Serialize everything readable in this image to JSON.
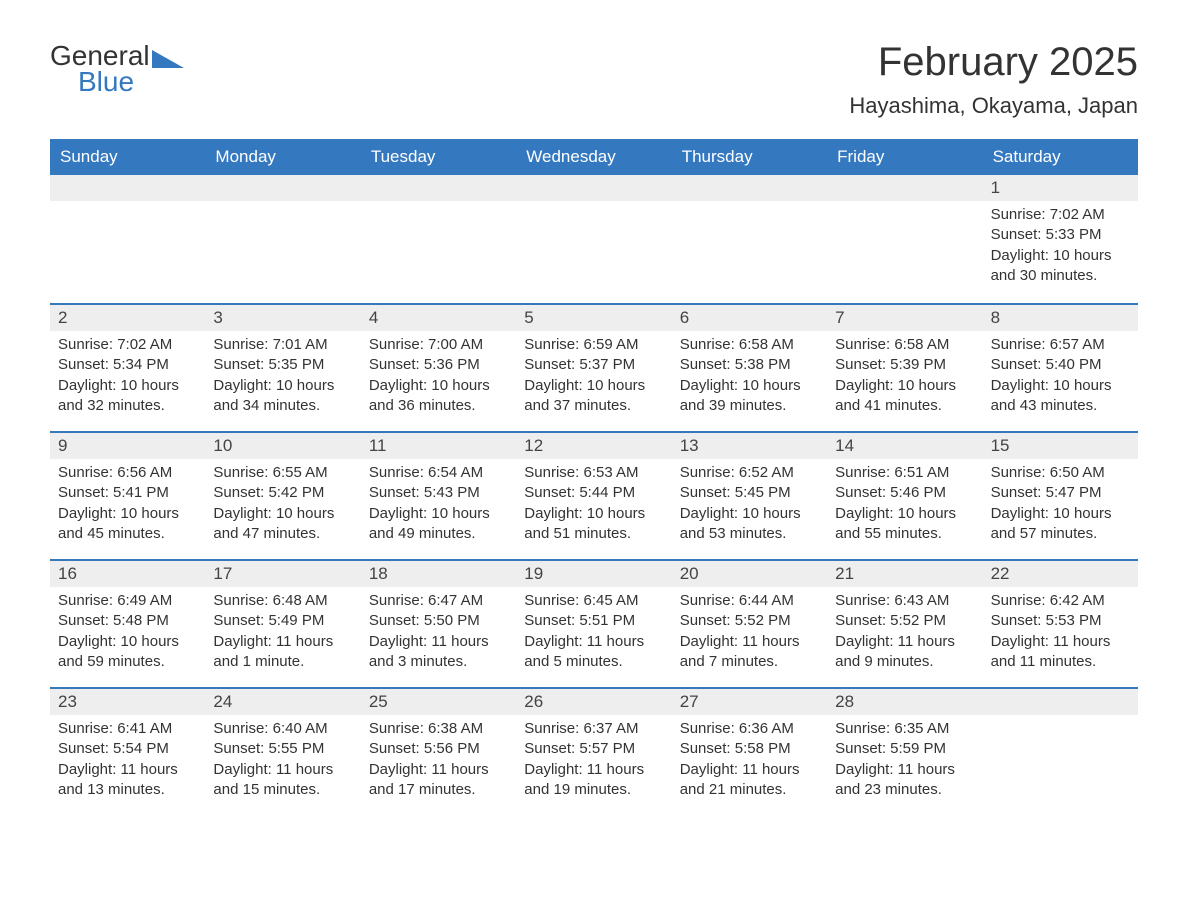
{
  "logo": {
    "text1": "General",
    "text2": "Blue"
  },
  "title": "February 2025",
  "location": "Hayashima, Okayama, Japan",
  "colors": {
    "header_bg": "#3478c0",
    "header_text": "#ffffff",
    "row_separator": "#3478c0",
    "daynum_bg": "#eeeeee",
    "text": "#333333",
    "background": "#ffffff"
  },
  "layout": {
    "columns": 7,
    "weekday_fontsize": 17,
    "title_fontsize": 40,
    "location_fontsize": 22,
    "daynum_fontsize": 17,
    "content_fontsize": 15
  },
  "weekdays": [
    "Sunday",
    "Monday",
    "Tuesday",
    "Wednesday",
    "Thursday",
    "Friday",
    "Saturday"
  ],
  "weeks": [
    [
      null,
      null,
      null,
      null,
      null,
      null,
      {
        "n": "1",
        "sunrise": "7:02 AM",
        "sunset": "5:33 PM",
        "daylight": "10 hours and 30 minutes."
      }
    ],
    [
      {
        "n": "2",
        "sunrise": "7:02 AM",
        "sunset": "5:34 PM",
        "daylight": "10 hours and 32 minutes."
      },
      {
        "n": "3",
        "sunrise": "7:01 AM",
        "sunset": "5:35 PM",
        "daylight": "10 hours and 34 minutes."
      },
      {
        "n": "4",
        "sunrise": "7:00 AM",
        "sunset": "5:36 PM",
        "daylight": "10 hours and 36 minutes."
      },
      {
        "n": "5",
        "sunrise": "6:59 AM",
        "sunset": "5:37 PM",
        "daylight": "10 hours and 37 minutes."
      },
      {
        "n": "6",
        "sunrise": "6:58 AM",
        "sunset": "5:38 PM",
        "daylight": "10 hours and 39 minutes."
      },
      {
        "n": "7",
        "sunrise": "6:58 AM",
        "sunset": "5:39 PM",
        "daylight": "10 hours and 41 minutes."
      },
      {
        "n": "8",
        "sunrise": "6:57 AM",
        "sunset": "5:40 PM",
        "daylight": "10 hours and 43 minutes."
      }
    ],
    [
      {
        "n": "9",
        "sunrise": "6:56 AM",
        "sunset": "5:41 PM",
        "daylight": "10 hours and 45 minutes."
      },
      {
        "n": "10",
        "sunrise": "6:55 AM",
        "sunset": "5:42 PM",
        "daylight": "10 hours and 47 minutes."
      },
      {
        "n": "11",
        "sunrise": "6:54 AM",
        "sunset": "5:43 PM",
        "daylight": "10 hours and 49 minutes."
      },
      {
        "n": "12",
        "sunrise": "6:53 AM",
        "sunset": "5:44 PM",
        "daylight": "10 hours and 51 minutes."
      },
      {
        "n": "13",
        "sunrise": "6:52 AM",
        "sunset": "5:45 PM",
        "daylight": "10 hours and 53 minutes."
      },
      {
        "n": "14",
        "sunrise": "6:51 AM",
        "sunset": "5:46 PM",
        "daylight": "10 hours and 55 minutes."
      },
      {
        "n": "15",
        "sunrise": "6:50 AM",
        "sunset": "5:47 PM",
        "daylight": "10 hours and 57 minutes."
      }
    ],
    [
      {
        "n": "16",
        "sunrise": "6:49 AM",
        "sunset": "5:48 PM",
        "daylight": "10 hours and 59 minutes."
      },
      {
        "n": "17",
        "sunrise": "6:48 AM",
        "sunset": "5:49 PM",
        "daylight": "11 hours and 1 minute."
      },
      {
        "n": "18",
        "sunrise": "6:47 AM",
        "sunset": "5:50 PM",
        "daylight": "11 hours and 3 minutes."
      },
      {
        "n": "19",
        "sunrise": "6:45 AM",
        "sunset": "5:51 PM",
        "daylight": "11 hours and 5 minutes."
      },
      {
        "n": "20",
        "sunrise": "6:44 AM",
        "sunset": "5:52 PM",
        "daylight": "11 hours and 7 minutes."
      },
      {
        "n": "21",
        "sunrise": "6:43 AM",
        "sunset": "5:52 PM",
        "daylight": "11 hours and 9 minutes."
      },
      {
        "n": "22",
        "sunrise": "6:42 AM",
        "sunset": "5:53 PM",
        "daylight": "11 hours and 11 minutes."
      }
    ],
    [
      {
        "n": "23",
        "sunrise": "6:41 AM",
        "sunset": "5:54 PM",
        "daylight": "11 hours and 13 minutes."
      },
      {
        "n": "24",
        "sunrise": "6:40 AM",
        "sunset": "5:55 PM",
        "daylight": "11 hours and 15 minutes."
      },
      {
        "n": "25",
        "sunrise": "6:38 AM",
        "sunset": "5:56 PM",
        "daylight": "11 hours and 17 minutes."
      },
      {
        "n": "26",
        "sunrise": "6:37 AM",
        "sunset": "5:57 PM",
        "daylight": "11 hours and 19 minutes."
      },
      {
        "n": "27",
        "sunrise": "6:36 AM",
        "sunset": "5:58 PM",
        "daylight": "11 hours and 21 minutes."
      },
      {
        "n": "28",
        "sunrise": "6:35 AM",
        "sunset": "5:59 PM",
        "daylight": "11 hours and 23 minutes."
      },
      null
    ]
  ],
  "labels": {
    "sunrise": "Sunrise:",
    "sunset": "Sunset:",
    "daylight": "Daylight:"
  }
}
